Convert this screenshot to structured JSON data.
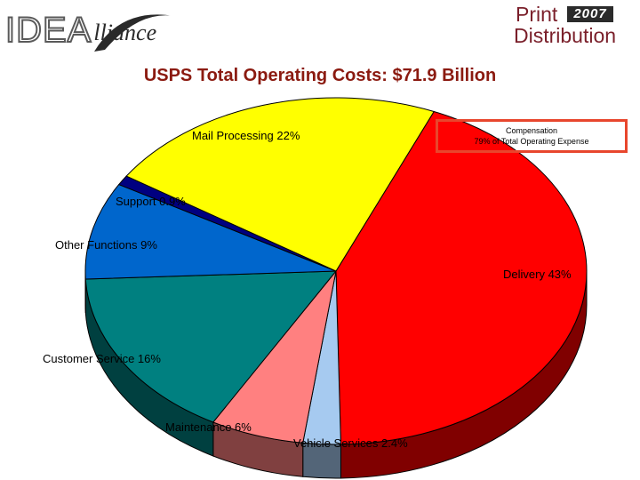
{
  "header": {
    "logo_left_word1": "IDEA",
    "logo_left_word2": "lliance",
    "logo_right_word1": "Print",
    "logo_right_year": "2007",
    "logo_right_word2": "Distribution"
  },
  "title": "USPS Total Operating Costs: $71.9 Billion",
  "callout": {
    "line1": "Compensation",
    "line2": "79% of Total Operating Expense"
  },
  "colors": {
    "title": "#8b1a10",
    "callout_border": "#e8462d"
  },
  "chart_data": {
    "type": "pie",
    "title": "USPS Total Operating Costs: $71.9 Billion",
    "slices": [
      {
        "label": "Delivery 43%",
        "value": 43,
        "color": "#ff0000"
      },
      {
        "label": "Vehicle Services 2.4%",
        "value": 2.4,
        "color": "#a6caf0"
      },
      {
        "label": "Maintenance 6%",
        "value": 6,
        "color": "#ff8080"
      },
      {
        "label": "Customer Service 16%",
        "value": 16,
        "color": "#008080"
      },
      {
        "label": "Other Functions 9%",
        "value": 9,
        "color": "#0066cc"
      },
      {
        "label": "Support 0.9%",
        "value": 0.9,
        "color": "#000080"
      },
      {
        "label": "Mail Processing 22%",
        "value": 22,
        "color": "#ffff00"
      }
    ]
  }
}
